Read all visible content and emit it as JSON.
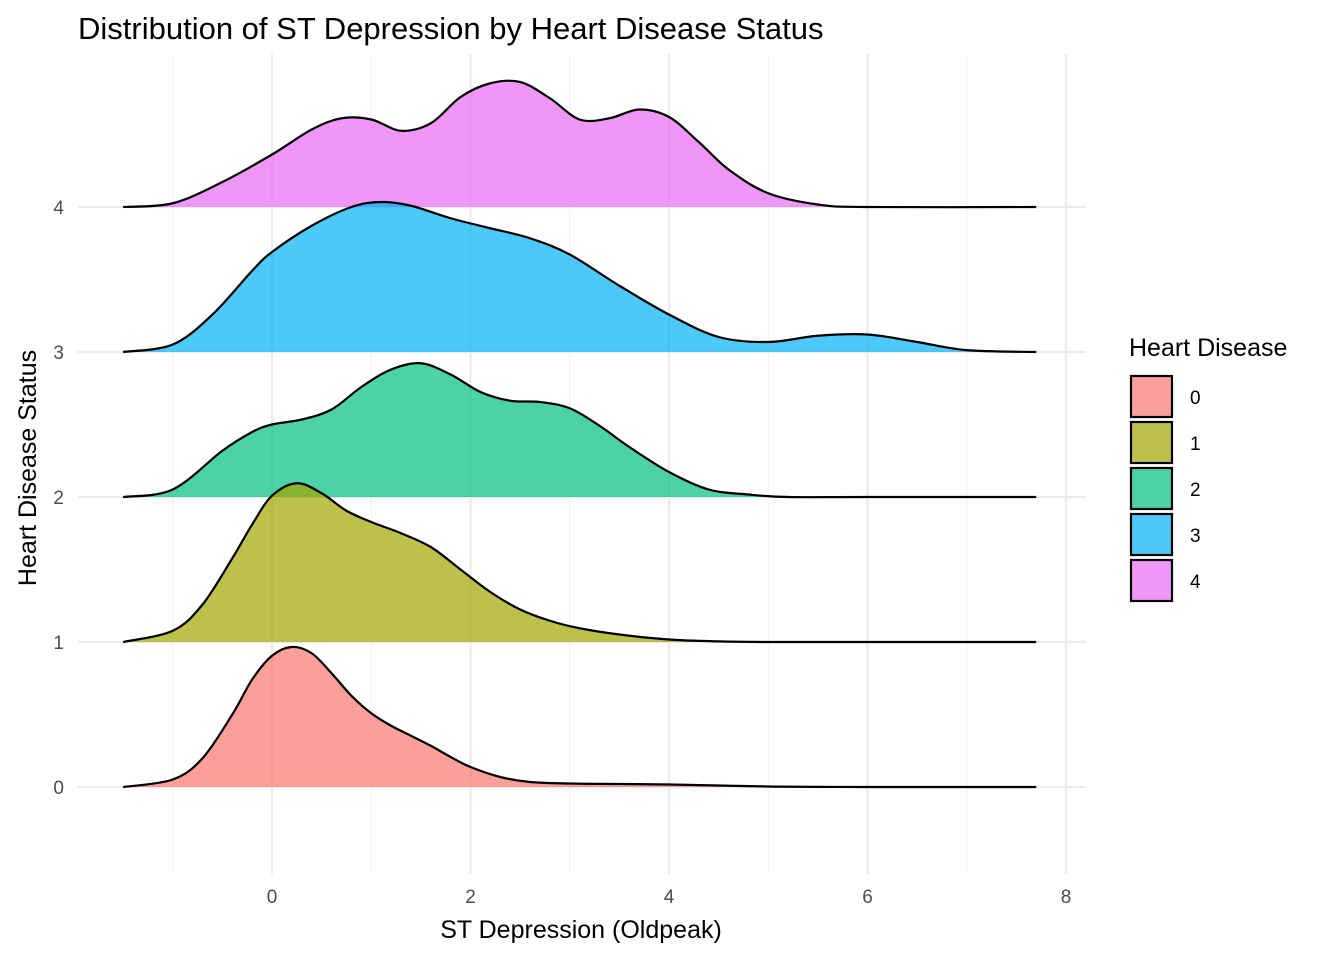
{
  "chart_data": {
    "type": "ridgeline",
    "title": "Distribution of ST Depression by Heart Disease Status",
    "xlabel": "ST Depression (Oldpeak)",
    "ylabel": "Heart Disease Status",
    "xlim": [
      -1.5,
      7.7
    ],
    "x_ticks": [
      "0",
      "2",
      "4",
      "6",
      "8"
    ],
    "x_tick_values": [
      0,
      2,
      4,
      6,
      8
    ],
    "y_ticks": [
      "0",
      "1",
      "2",
      "3",
      "4"
    ],
    "y_tick_values": [
      0,
      1,
      2,
      3,
      4
    ],
    "grid": true,
    "legend": {
      "title": "Heart Disease",
      "position": "right",
      "items": [
        "0",
        "1",
        "2",
        "3",
        "4"
      ]
    },
    "series": [
      {
        "name": "0",
        "color": "#F8766D",
        "baseline": 0,
        "x": [
          -1.5,
          -1.0,
          -0.7,
          -0.4,
          -0.2,
          0.0,
          0.2,
          0.4,
          0.6,
          0.8,
          1.0,
          1.2,
          1.4,
          1.6,
          1.8,
          2.0,
          2.3,
          2.6,
          3.0,
          3.5,
          4.0,
          4.5,
          5.0,
          5.5,
          6.0,
          7.0,
          7.7
        ],
        "density": [
          0.0,
          0.06,
          0.23,
          0.58,
          0.86,
          1.05,
          1.12,
          1.07,
          0.91,
          0.73,
          0.59,
          0.49,
          0.41,
          0.33,
          0.24,
          0.16,
          0.08,
          0.04,
          0.028,
          0.024,
          0.02,
          0.012,
          0.004,
          0.001,
          0.0,
          0.0,
          0.0
        ]
      },
      {
        "name": "1",
        "color": "#A3A500",
        "baseline": 1,
        "x": [
          -1.5,
          -1.0,
          -0.7,
          -0.4,
          -0.2,
          0.0,
          0.25,
          0.5,
          0.75,
          1.0,
          1.3,
          1.6,
          1.9,
          2.2,
          2.5,
          2.8,
          3.1,
          3.5,
          4.0,
          4.5,
          5.0,
          6.0,
          7.7
        ],
        "density": [
          0.0,
          0.09,
          0.3,
          0.67,
          0.94,
          1.17,
          1.27,
          1.19,
          1.05,
          0.96,
          0.87,
          0.76,
          0.58,
          0.4,
          0.26,
          0.17,
          0.11,
          0.06,
          0.02,
          0.005,
          0.0,
          0.0,
          0.0
        ]
      },
      {
        "name": "2",
        "color": "#00BF7D",
        "baseline": 2,
        "x": [
          -1.5,
          -1.0,
          -0.5,
          -0.2,
          0.0,
          0.3,
          0.6,
          0.9,
          1.2,
          1.5,
          1.8,
          2.1,
          2.4,
          2.7,
          3.0,
          3.3,
          3.6,
          4.0,
          4.4,
          4.8,
          5.2,
          6.0,
          7.7
        ],
        "density": [
          0.0,
          0.06,
          0.37,
          0.52,
          0.58,
          0.62,
          0.7,
          0.88,
          1.02,
          1.07,
          0.98,
          0.84,
          0.77,
          0.76,
          0.71,
          0.57,
          0.4,
          0.2,
          0.06,
          0.02,
          0.0,
          0.0,
          0.0
        ]
      },
      {
        "name": "3",
        "color": "#00B0F6",
        "baseline": 3,
        "x": [
          -1.5,
          -1.0,
          -0.6,
          -0.2,
          0.0,
          0.4,
          0.8,
          1.1,
          1.4,
          1.8,
          2.2,
          2.6,
          3.0,
          3.5,
          4.0,
          4.5,
          5.0,
          5.5,
          6.0,
          6.5,
          7.0,
          7.7
        ],
        "density": [
          0.0,
          0.06,
          0.3,
          0.65,
          0.8,
          1.01,
          1.16,
          1.2,
          1.17,
          1.07,
          0.99,
          0.91,
          0.78,
          0.53,
          0.3,
          0.12,
          0.08,
          0.13,
          0.14,
          0.08,
          0.015,
          0.0
        ]
      },
      {
        "name": "4",
        "color": "#E76BF3",
        "baseline": 4,
        "x": [
          -1.5,
          -1.0,
          -0.5,
          0.0,
          0.4,
          0.7,
          1.0,
          1.3,
          1.6,
          1.9,
          2.2,
          2.5,
          2.8,
          3.1,
          3.4,
          3.7,
          4.0,
          4.3,
          4.6,
          5.0,
          5.5,
          6.0,
          7.7
        ],
        "density": [
          0.0,
          0.03,
          0.2,
          0.42,
          0.62,
          0.71,
          0.7,
          0.61,
          0.67,
          0.88,
          0.99,
          1.0,
          0.87,
          0.7,
          0.71,
          0.78,
          0.72,
          0.52,
          0.3,
          0.11,
          0.02,
          0.0,
          0.0
        ]
      }
    ]
  }
}
